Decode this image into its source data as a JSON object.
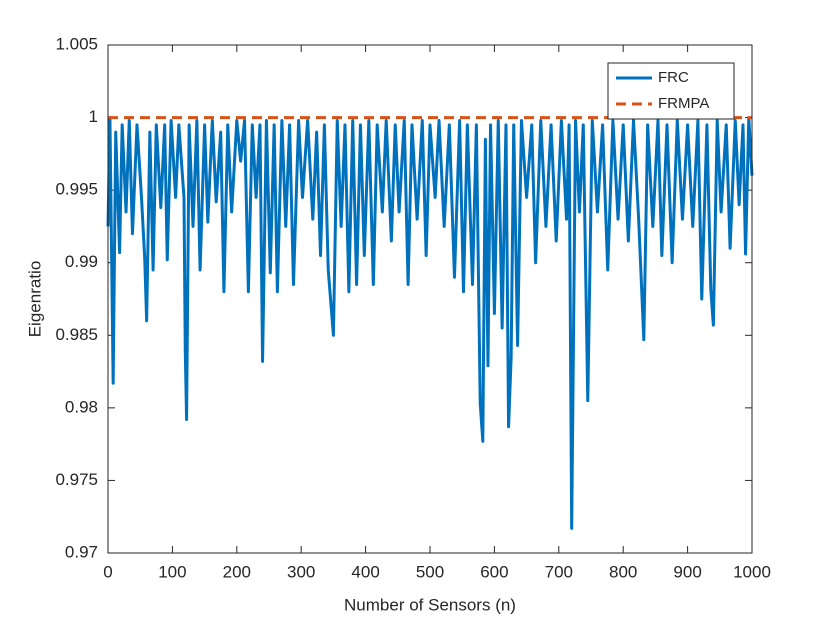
{
  "chart_data": {
    "type": "line",
    "x_label": "Number of Sensors (n)",
    "y_label": "Eigenratio",
    "xlim": [
      0,
      1000
    ],
    "xticks": [
      0,
      100,
      200,
      300,
      400,
      500,
      600,
      700,
      800,
      900,
      1000
    ],
    "ylim": [
      0.97,
      1.005
    ],
    "yticks": [
      0.97,
      0.975,
      0.98,
      0.985,
      0.99,
      0.995,
      1,
      1.005
    ],
    "legend": "upper right",
    "series": [
      {
        "name": "FRC",
        "color": "#0072bd",
        "dash": "solid",
        "x": [
          0,
          3,
          8,
          12,
          18,
          22,
          28,
          33,
          38,
          45,
          52,
          57,
          60,
          65,
          70,
          75,
          82,
          88,
          92,
          98,
          105,
          110,
          118,
          120,
          122,
          126,
          132,
          138,
          143,
          150,
          155,
          162,
          168,
          175,
          180,
          186,
          192,
          200,
          206,
          212,
          218,
          224,
          230,
          236,
          240,
          246,
          252,
          258,
          263,
          270,
          276,
          282,
          288,
          296,
          302,
          310,
          318,
          324,
          330,
          336,
          342,
          350,
          356,
          362,
          368,
          374,
          380,
          386,
          392,
          398,
          405,
          412,
          418,
          426,
          432,
          440,
          446,
          452,
          460,
          466,
          472,
          480,
          488,
          494,
          500,
          508,
          514,
          522,
          530,
          538,
          546,
          552,
          558,
          566,
          572,
          578,
          582,
          586,
          590,
          594,
          600,
          606,
          612,
          618,
          622,
          626,
          630,
          636,
          642,
          650,
          658,
          664,
          672,
          680,
          688,
          696,
          704,
          712,
          716,
          720,
          726,
          732,
          738,
          745,
          752,
          760,
          768,
          776,
          784,
          792,
          800,
          808,
          816,
          824,
          832,
          838,
          846,
          854,
          860,
          868,
          876,
          884,
          892,
          900,
          908,
          916,
          922,
          930,
          936,
          940,
          946,
          952,
          960,
          966,
          974,
          980,
          986,
          990,
          995,
          1000
        ],
        "values": [
          0.9925,
          1,
          0.9817,
          0.999,
          0.9907,
          0.9995,
          0.9935,
          0.9998,
          0.992,
          0.9995,
          0.9945,
          0.9903,
          0.986,
          0.999,
          0.9895,
          0.9995,
          0.9938,
          0.9995,
          0.9902,
          0.9998,
          0.9945,
          0.9995,
          0.9945,
          0.9839,
          0.9792,
          0.9995,
          0.9925,
          0.9998,
          0.9895,
          0.9995,
          0.9928,
          0.9998,
          0.9942,
          0.999,
          0.988,
          0.9995,
          0.9935,
          0.9998,
          0.997,
          0.9998,
          0.988,
          0.9995,
          0.9945,
          0.9995,
          0.9832,
          0.9998,
          0.9893,
          0.9995,
          0.988,
          0.9998,
          0.9925,
          0.9995,
          0.9885,
          0.9998,
          0.9945,
          0.9998,
          0.993,
          0.999,
          0.9905,
          0.9995,
          0.9895,
          0.985,
          0.9998,
          0.9925,
          0.9995,
          0.988,
          0.9998,
          0.9885,
          0.9995,
          0.9905,
          0.9998,
          0.9885,
          0.9995,
          0.9935,
          0.9998,
          0.9915,
          0.9995,
          0.9935,
          0.9998,
          0.9885,
          0.9995,
          0.993,
          0.9998,
          0.9905,
          0.9995,
          0.9945,
          0.9998,
          0.9925,
          0.9995,
          0.989,
          0.9998,
          0.988,
          0.9995,
          0.9885,
          0.9995,
          0.9803,
          0.9777,
          0.9985,
          0.9829,
          0.9995,
          0.9865,
          0.9998,
          0.9855,
          0.9995,
          0.9787,
          0.9835,
          0.9995,
          0.9843,
          0.9998,
          0.9945,
          0.9995,
          0.99,
          0.9998,
          0.9925,
          0.9995,
          0.9915,
          0.9998,
          0.993,
          0.9995,
          0.9717,
          0.9998,
          0.9935,
          0.9995,
          0.9805,
          0.9998,
          0.9935,
          0.9995,
          0.9895,
          0.9998,
          0.993,
          0.9995,
          0.9915,
          0.9998,
          0.993,
          0.9847,
          0.9995,
          0.9925,
          0.9998,
          0.9905,
          0.9995,
          0.99,
          0.9998,
          0.993,
          0.9995,
          0.9925,
          0.9998,
          0.9875,
          0.9995,
          0.9882,
          0.9857,
          0.9998,
          0.9935,
          0.9995,
          0.991,
          0.9998,
          0.994,
          0.9995,
          0.9906,
          1,
          0.996
        ]
      },
      {
        "name": "FRMPA",
        "color": "#d95319",
        "dash": "dashed",
        "x": [
          0,
          1000
        ],
        "values": [
          1,
          1
        ]
      }
    ]
  }
}
